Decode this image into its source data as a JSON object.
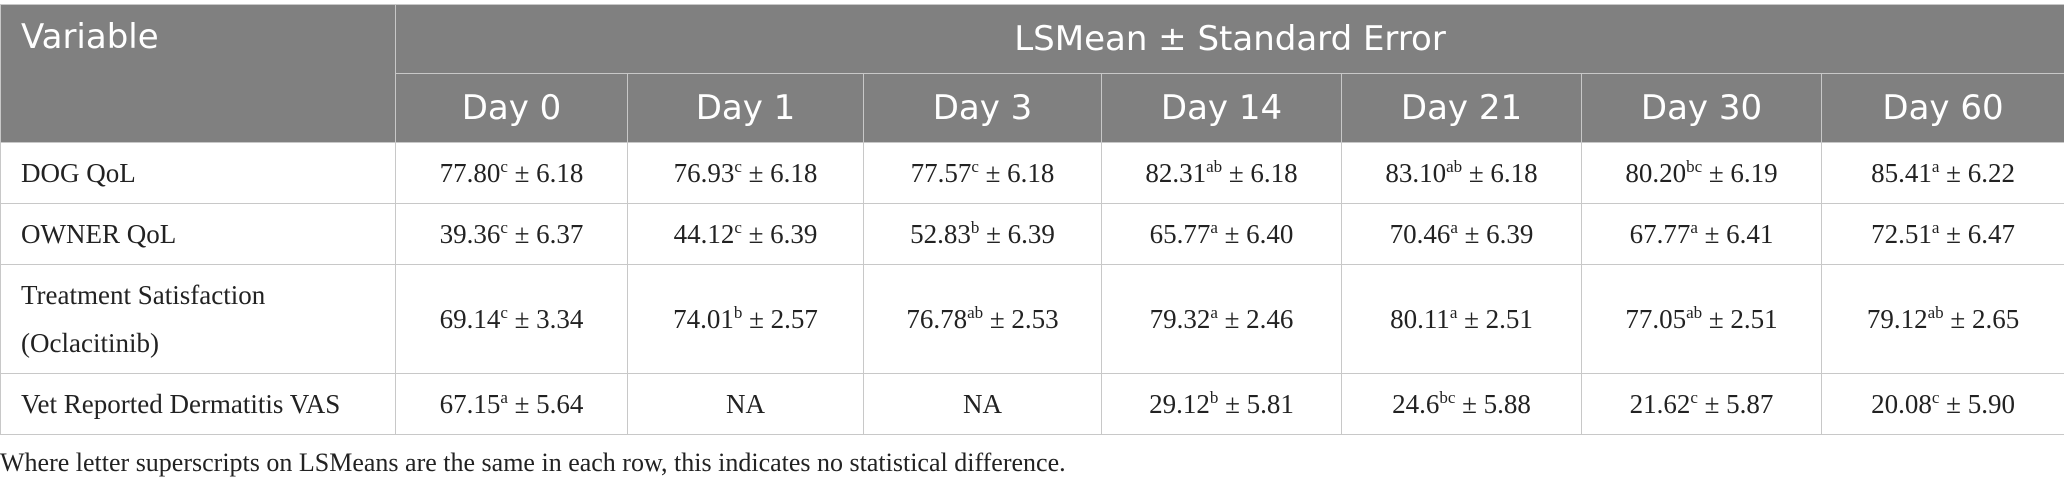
{
  "table": {
    "variable_header": "Variable",
    "group_header": "LSMean ± Standard Error",
    "columns": [
      "Day 0",
      "Day 1",
      "Day 3",
      "Day 14",
      "Day 21",
      "Day 30",
      "Day 60"
    ],
    "rows": [
      {
        "label_lines": [
          "DOG QoL"
        ],
        "cells": [
          {
            "v": "77.80",
            "sup": "c",
            "se": " ± 6.18"
          },
          {
            "v": "76.93",
            "sup": "c",
            "se": " ± 6.18"
          },
          {
            "v": "77.57",
            "sup": "c",
            "se": " ± 6.18"
          },
          {
            "v": "82.31",
            "sup": "ab",
            "se": " ± 6.18"
          },
          {
            "v": "83.10",
            "sup": "ab",
            "se": " ± 6.18"
          },
          {
            "v": "80.20",
            "sup": "bc",
            "se": " ± 6.19"
          },
          {
            "v": "85.41",
            "sup": "a",
            "se": " ± 6.22"
          }
        ]
      },
      {
        "label_lines": [
          "OWNER QoL"
        ],
        "cells": [
          {
            "v": "39.36",
            "sup": "c",
            "se": " ± 6.37"
          },
          {
            "v": "44.12",
            "sup": "c",
            "se": " ± 6.39"
          },
          {
            "v": "52.83",
            "sup": "b",
            "se": " ± 6.39"
          },
          {
            "v": "65.77",
            "sup": "a",
            "se": " ± 6.40"
          },
          {
            "v": "70.46",
            "sup": "a",
            "se": " ± 6.39"
          },
          {
            "v": "67.77",
            "sup": "a",
            "se": " ± 6.41"
          },
          {
            "v": "72.51",
            "sup": "a",
            "se": " ± 6.47"
          }
        ]
      },
      {
        "label_lines": [
          "Treatment Satisfaction",
          "(Oclacitinib)"
        ],
        "cells": [
          {
            "v": "69.14",
            "sup": "c",
            "se": " ± 3.34"
          },
          {
            "v": "74.01",
            "sup": "b",
            "se": " ± 2.57"
          },
          {
            "v": "76.78",
            "sup": "ab",
            "se": " ± 2.53"
          },
          {
            "v": "79.32",
            "sup": "a",
            "se": " ± 2.46"
          },
          {
            "v": "80.11",
            "sup": "a",
            "se": " ± 2.51"
          },
          {
            "v": "77.05",
            "sup": "ab",
            "se": " ± 2.51"
          },
          {
            "v": "79.12",
            "sup": "ab",
            "se": " ± 2.65"
          }
        ]
      },
      {
        "label_lines": [
          "Vet Reported Dermatitis VAS"
        ],
        "cells": [
          {
            "v": "67.15",
            "sup": "a",
            "se": " ± 5.64"
          },
          {
            "v": "NA",
            "sup": "",
            "se": ""
          },
          {
            "v": "NA",
            "sup": "",
            "se": ""
          },
          {
            "v": "29.12",
            "sup": "b",
            "se": " ± 5.81"
          },
          {
            "v": "24.6",
            "sup": "bc",
            "se": " ± 5.88"
          },
          {
            "v": "21.62",
            "sup": "c",
            "se": " ± 5.87"
          },
          {
            "v": "20.08",
            "sup": "c",
            "se": " ± 5.90"
          }
        ]
      }
    ]
  },
  "footnote": "Where letter superscripts on LSMeans are the same in each row, this indicates no statistical difference."
}
